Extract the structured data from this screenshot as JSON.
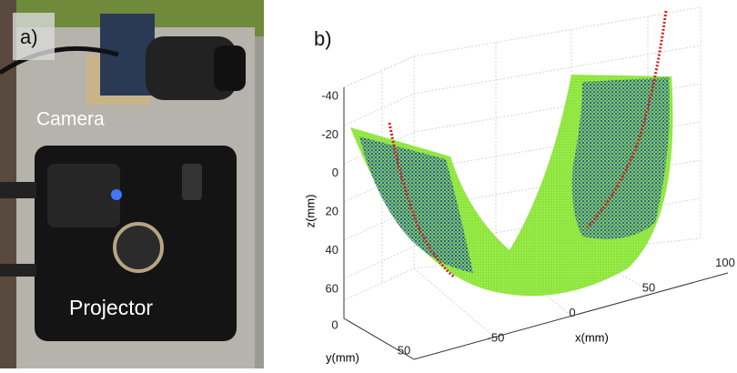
{
  "panel_a": {
    "label": "a)",
    "annotations": [
      "Camera",
      "Projector"
    ]
  },
  "panel_b": {
    "label": "b)",
    "z_axis": {
      "label": "z(mm)",
      "ticks": [
        -40,
        -20,
        0,
        20,
        40,
        60
      ]
    },
    "y_axis": {
      "label": "y(mm)",
      "ticks": [
        0,
        50
      ]
    },
    "x_axis": {
      "label": "x(mm)",
      "ticks": [
        -50,
        0,
        50,
        100
      ]
    }
  }
}
